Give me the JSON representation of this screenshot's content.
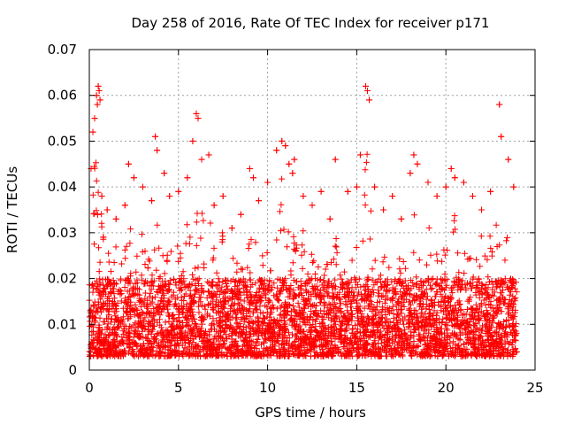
{
  "chart_data": {
    "type": "scatter",
    "title": "Day 258 of 2016, Rate Of TEC Index for receiver p171",
    "xlabel": "GPS time / hours",
    "ylabel": "ROTI / TECUs",
    "xlim": [
      0,
      25
    ],
    "ylim": [
      0,
      0.07
    ],
    "x_ticks": [
      0,
      5,
      10,
      15,
      20,
      25
    ],
    "x_tick_labels": [
      "0",
      "5",
      "10",
      "15",
      "20",
      "25"
    ],
    "y_ticks": [
      0,
      0.01,
      0.02,
      0.03,
      0.04,
      0.05,
      0.06,
      0.07
    ],
    "y_tick_labels": [
      "0",
      "0.01",
      "0.02",
      "0.03",
      "0.04",
      "0.05",
      "0.06",
      "0.07"
    ],
    "grid": true,
    "marker": "+",
    "series": [
      {
        "name": "ROTI",
        "color": "#ff0000",
        "note": "dense cloud of points 0–24 h, mostly 0.003–0.02 TECU/min",
        "x_range": [
          0,
          24
        ],
        "band_values": [
          0.003,
          0.02
        ],
        "x": [
          0.1,
          0.2,
          0.3,
          0.4,
          0.45,
          0.5,
          0.55,
          0.6,
          0.7,
          1.0,
          1.5,
          2.0,
          2.2,
          2.5,
          3.0,
          3.5,
          3.7,
          3.8,
          4.2,
          4.5,
          5.0,
          5.5,
          5.8,
          6.0,
          6.1,
          6.3,
          6.7,
          7.0,
          7.5,
          8.0,
          8.5,
          9.0,
          9.2,
          9.5,
          10.0,
          10.5,
          10.8,
          11.0,
          11.2,
          11.4,
          11.5,
          12.0,
          12.5,
          13.0,
          13.5,
          13.8,
          14.5,
          15.0,
          15.2,
          15.5,
          15.6,
          15.7,
          16.0,
          16.5,
          17.0,
          17.5,
          18.0,
          18.2,
          18.4,
          19.0,
          19.5,
          20.0,
          20.3,
          20.5,
          21.0,
          21.5,
          22.0,
          22.5,
          23.0,
          23.1,
          23.5,
          23.8
        ],
        "y": [
          0.044,
          0.052,
          0.055,
          0.06,
          0.058,
          0.062,
          0.061,
          0.059,
          0.038,
          0.035,
          0.033,
          0.036,
          0.045,
          0.042,
          0.04,
          0.037,
          0.051,
          0.048,
          0.043,
          0.038,
          0.039,
          0.042,
          0.05,
          0.056,
          0.055,
          0.046,
          0.047,
          0.036,
          0.038,
          0.031,
          0.034,
          0.044,
          0.042,
          0.037,
          0.041,
          0.048,
          0.05,
          0.049,
          0.045,
          0.043,
          0.046,
          0.038,
          0.036,
          0.039,
          0.033,
          0.046,
          0.039,
          0.04,
          0.047,
          0.062,
          0.061,
          0.059,
          0.04,
          0.035,
          0.038,
          0.033,
          0.043,
          0.047,
          0.045,
          0.041,
          0.038,
          0.04,
          0.044,
          0.042,
          0.041,
          0.038,
          0.035,
          0.039,
          0.058,
          0.051,
          0.046,
          0.04
        ]
      }
    ]
  }
}
